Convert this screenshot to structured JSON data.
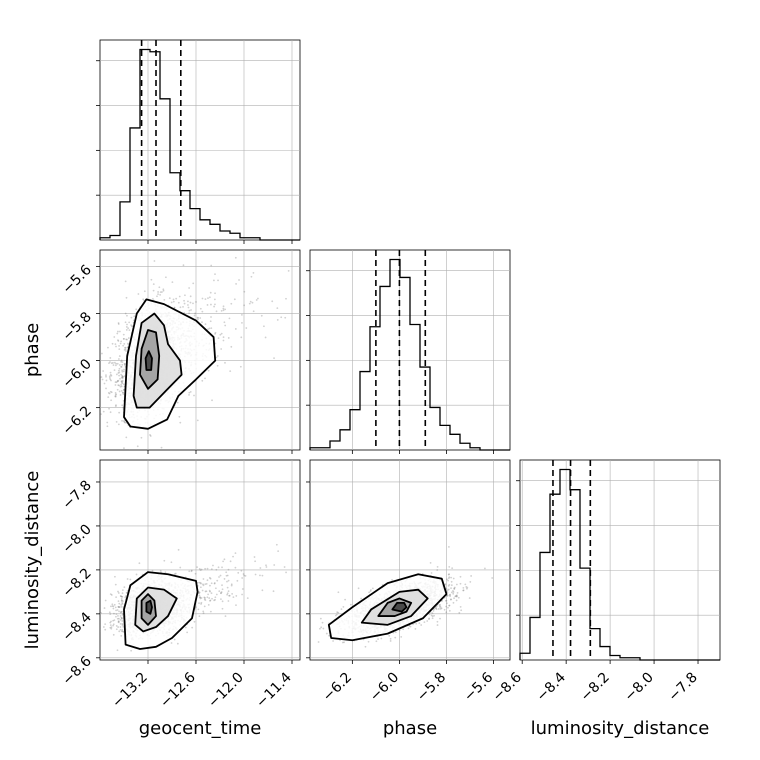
{
  "chart_data": {
    "type": "corner",
    "parameters": [
      "geocent_time",
      "phase",
      "luminosity_distance"
    ],
    "axis_labels": {
      "geocent_time": "geocent_time",
      "phase": "phase",
      "luminosity_distance": "luminosity_distance"
    },
    "ranges": {
      "geocent_time": [
        -13.8,
        -11.3
      ],
      "phase": [
        -6.38,
        -5.53
      ],
      "luminosity_distance": [
        -8.61,
        -7.7
      ]
    },
    "ticks": {
      "geocent_time": [
        {
          "v": -13.2,
          "label": "−13.2"
        },
        {
          "v": -12.6,
          "label": "−12.6"
        },
        {
          "v": -12.0,
          "label": "−12.0"
        },
        {
          "v": -11.4,
          "label": "−11.4"
        }
      ],
      "phase": [
        {
          "v": -6.2,
          "label": "−6.2"
        },
        {
          "v": -6.0,
          "label": "−6.0"
        },
        {
          "v": -5.8,
          "label": "−5.8"
        },
        {
          "v": -5.6,
          "label": "−5.6"
        }
      ],
      "luminosity_distance": [
        {
          "v": -8.6,
          "label": "−8.6"
        },
        {
          "v": -8.4,
          "label": "−8.4"
        },
        {
          "v": -8.2,
          "label": "−8.2"
        },
        {
          "v": -8.0,
          "label": "−8.0"
        },
        {
          "v": -7.8,
          "label": "−7.8"
        }
      ]
    },
    "quantiles": {
      "geocent_time": [
        -13.28,
        -13.1,
        -12.79
      ],
      "phase": [
        -6.1,
        -6.0,
        -5.89
      ],
      "luminosity_distance": [
        -8.46,
        -8.38,
        -8.29
      ]
    },
    "histograms": {
      "geocent_time": {
        "edges": [
          -13.8,
          -13.675,
          -13.55,
          -13.425,
          -13.3,
          -13.175,
          -13.05,
          -12.925,
          -12.8,
          -12.675,
          -12.55,
          -12.425,
          -12.3,
          -12.175,
          -12.05,
          -11.925,
          -11.8,
          -11.675,
          -11.55,
          -11.425,
          -11.3
        ],
        "counts": [
          1,
          2,
          17,
          50,
          85,
          84,
          63,
          30,
          22,
          14,
          9,
          7,
          4,
          3,
          1,
          1,
          0,
          0,
          0,
          0
        ]
      },
      "phase": {
        "edges": [
          -6.38,
          -6.3375,
          -6.295,
          -6.2525,
          -6.21,
          -6.1675,
          -6.125,
          -6.0825,
          -6.04,
          -5.9975,
          -5.955,
          -5.9125,
          -5.87,
          -5.8275,
          -5.785,
          -5.7425,
          -5.7,
          -5.6575,
          -5.615,
          -5.5725,
          -5.53
        ],
        "counts": [
          1,
          1,
          4,
          9,
          18,
          35,
          55,
          73,
          85,
          77,
          56,
          37,
          19,
          11,
          7,
          3,
          1,
          0,
          0,
          0
        ]
      },
      "luminosity_distance": {
        "edges": [
          -8.61,
          -8.5645,
          -8.519,
          -8.4735,
          -8.428,
          -8.3825,
          -8.337,
          -8.2915,
          -8.246,
          -8.2005,
          -8.155,
          -8.1095,
          -8.064,
          -8.0185,
          -7.973,
          -7.9275,
          -7.882,
          -7.8365,
          -7.791,
          -7.7455,
          -7.7
        ],
        "counts": [
          3,
          19,
          48,
          74,
          85,
          76,
          41,
          14,
          6,
          2,
          1,
          1,
          0,
          0,
          0,
          0,
          0,
          0,
          0,
          0
        ]
      }
    },
    "scatter_2d": [
      {
        "x": "geocent_time",
        "y": "phase",
        "center": [
          -13.2,
          -6.0
        ],
        "spread": [
          0.22,
          0.12
        ],
        "rho": 0.3,
        "tail": [
          0.5,
          0.07
        ]
      },
      {
        "x": "geocent_time",
        "y": "luminosity_distance",
        "center": [
          -13.2,
          -8.38
        ],
        "spread": [
          0.2,
          0.06
        ],
        "rho": 0.15,
        "tail": [
          0.6,
          0.07
        ]
      },
      {
        "x": "phase",
        "y": "luminosity_distance",
        "center": [
          -6.0,
          -8.37
        ],
        "spread": [
          0.11,
          0.06
        ],
        "rho": 0.6,
        "tail": [
          0,
          0
        ]
      }
    ],
    "contours": {
      "geocent_time|phase": [
        [
          [
            -13.5,
            -6.24
          ],
          [
            -13.46,
            -5.98
          ],
          [
            -13.34,
            -5.8
          ],
          [
            -13.22,
            -5.74
          ],
          [
            -13.0,
            -5.76
          ],
          [
            -12.6,
            -5.83
          ],
          [
            -12.38,
            -5.9
          ],
          [
            -12.36,
            -6.0
          ],
          [
            -12.6,
            -6.08
          ],
          [
            -12.82,
            -6.15
          ],
          [
            -12.96,
            -6.25
          ],
          [
            -13.2,
            -6.29
          ],
          [
            -13.42,
            -6.28
          ]
        ],
        [
          [
            -13.38,
            -6.15
          ],
          [
            -13.35,
            -5.98
          ],
          [
            -13.28,
            -5.84
          ],
          [
            -13.12,
            -5.8
          ],
          [
            -13.0,
            -5.85
          ],
          [
            -12.95,
            -5.93
          ],
          [
            -12.8,
            -6.0
          ],
          [
            -12.78,
            -6.06
          ],
          [
            -12.98,
            -6.13
          ],
          [
            -13.18,
            -6.2
          ],
          [
            -13.34,
            -6.2
          ]
        ],
        [
          [
            -13.3,
            -6.06
          ],
          [
            -13.28,
            -5.95
          ],
          [
            -13.2,
            -5.87
          ],
          [
            -13.1,
            -5.88
          ],
          [
            -13.06,
            -5.98
          ],
          [
            -13.08,
            -6.08
          ],
          [
            -13.2,
            -6.12
          ]
        ],
        [
          [
            -13.22,
            -6.04
          ],
          [
            -13.23,
            -5.99
          ],
          [
            -13.19,
            -5.96
          ],
          [
            -13.15,
            -5.99
          ],
          [
            -13.16,
            -6.04
          ]
        ]
      ],
      "geocent_time|luminosity_distance": [
        [
          [
            -13.48,
            -8.54
          ],
          [
            -13.5,
            -8.38
          ],
          [
            -13.42,
            -8.27
          ],
          [
            -13.2,
            -8.21
          ],
          [
            -12.95,
            -8.22
          ],
          [
            -12.6,
            -8.25
          ],
          [
            -12.58,
            -8.3
          ],
          [
            -12.65,
            -8.42
          ],
          [
            -12.9,
            -8.51
          ],
          [
            -13.1,
            -8.55
          ],
          [
            -13.3,
            -8.56
          ]
        ],
        [
          [
            -13.36,
            -8.45
          ],
          [
            -13.34,
            -8.33
          ],
          [
            -13.2,
            -8.28
          ],
          [
            -13.0,
            -8.29
          ],
          [
            -12.84,
            -8.33
          ],
          [
            -12.95,
            -8.41
          ],
          [
            -13.1,
            -8.46
          ],
          [
            -13.26,
            -8.48
          ]
        ],
        [
          [
            -13.28,
            -8.42
          ],
          [
            -13.28,
            -8.34
          ],
          [
            -13.2,
            -8.31
          ],
          [
            -13.12,
            -8.34
          ],
          [
            -13.1,
            -8.41
          ],
          [
            -13.2,
            -8.45
          ]
        ],
        [
          [
            -13.22,
            -8.39
          ],
          [
            -13.22,
            -8.35
          ],
          [
            -13.17,
            -8.34
          ],
          [
            -13.15,
            -8.37
          ],
          [
            -13.17,
            -8.4
          ]
        ]
      ],
      "phase|luminosity_distance": [
        [
          [
            -6.29,
            -8.51
          ],
          [
            -6.3,
            -8.45
          ],
          [
            -6.2,
            -8.37
          ],
          [
            -6.05,
            -8.26
          ],
          [
            -5.92,
            -8.22
          ],
          [
            -5.82,
            -8.24
          ],
          [
            -5.8,
            -8.31
          ],
          [
            -5.9,
            -8.42
          ],
          [
            -6.05,
            -8.49
          ],
          [
            -6.2,
            -8.52
          ]
        ],
        [
          [
            -6.16,
            -8.44
          ],
          [
            -6.12,
            -8.38
          ],
          [
            -6.0,
            -8.3
          ],
          [
            -5.92,
            -8.29
          ],
          [
            -5.88,
            -8.33
          ],
          [
            -5.95,
            -8.41
          ],
          [
            -6.05,
            -8.45
          ]
        ],
        [
          [
            -6.09,
            -8.41
          ],
          [
            -6.05,
            -8.35
          ],
          [
            -6.0,
            -8.33
          ],
          [
            -5.95,
            -8.35
          ],
          [
            -5.97,
            -8.39
          ],
          [
            -6.02,
            -8.41
          ]
        ],
        [
          [
            -6.03,
            -8.38
          ],
          [
            -6.01,
            -8.35
          ],
          [
            -5.98,
            -8.35
          ],
          [
            -5.97,
            -8.37
          ],
          [
            -5.99,
            -8.39
          ]
        ]
      ]
    },
    "grid": true,
    "colors": {
      "contour": "#000000",
      "points": "#7a7a7a",
      "grid": "#b0b0b0"
    }
  }
}
